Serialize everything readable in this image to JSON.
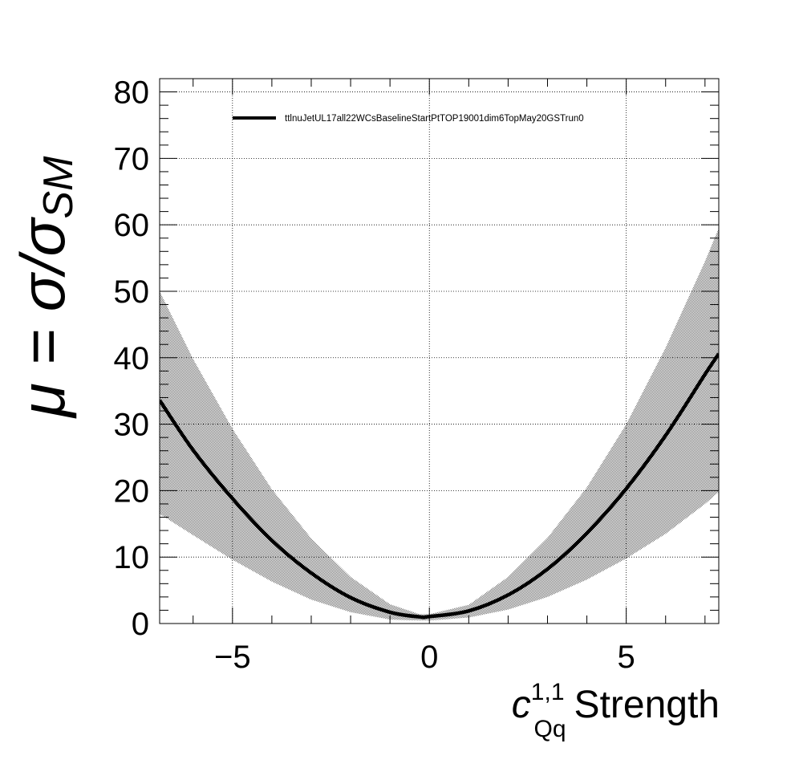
{
  "chart_data": {
    "type": "line",
    "title": "",
    "xlabel": {
      "symbol": "c",
      "superscript": "1,1",
      "subscript": "Qq",
      "text": "Strength"
    },
    "ylabel": {
      "prefix": "μ = σ/σ",
      "subscript": "SM"
    },
    "xlim": [
      -6.85,
      7.35
    ],
    "ylim": [
      0,
      82
    ],
    "xticks": [
      -5,
      0,
      5
    ],
    "xtick_labels": [
      "−5",
      "0",
      "5"
    ],
    "yticks": [
      0,
      10,
      20,
      30,
      40,
      50,
      60,
      70,
      80
    ],
    "ytick_labels": [
      "0",
      "10",
      "20",
      "30",
      "40",
      "50",
      "60",
      "70",
      "80"
    ],
    "grid": true,
    "legend_position": "top",
    "series": [
      {
        "name": "ttlnuJetUL17all22WCsBaselineStartPtTOP19001dim6TopMay20GSTrun0",
        "x": [
          -6.85,
          -6,
          -5,
          -4,
          -3,
          -2,
          -1,
          -0.25,
          0,
          1,
          2,
          3,
          4,
          5,
          6,
          7,
          7.35
        ],
        "y": [
          33.6,
          26.1,
          18.8,
          12.5,
          7.6,
          3.9,
          1.7,
          1.0,
          1.05,
          1.9,
          4.3,
          8.2,
          13.6,
          20.3,
          28.3,
          37.5,
          40.6
        ]
      }
    ],
    "band": {
      "x": [
        -6.85,
        -6,
        -5,
        -4,
        -3,
        -2,
        -1,
        -0.25,
        0,
        1,
        2,
        3,
        4,
        5,
        6,
        7,
        7.35
      ],
      "upper": [
        50.0,
        39.8,
        29.3,
        20.2,
        12.8,
        7.0,
        2.9,
        1.4,
        1.4,
        2.8,
        7.0,
        12.9,
        20.5,
        30.0,
        41.5,
        54.5,
        59.5
      ],
      "lower": [
        16.5,
        13.3,
        9.6,
        6.3,
        3.6,
        1.7,
        0.6,
        0.45,
        0.45,
        0.9,
        2.1,
        4.0,
        6.6,
        9.8,
        13.5,
        18.0,
        19.8
      ]
    },
    "colors": {
      "line": "#000000",
      "band": "#b3b3b3",
      "grid": "#000000"
    }
  }
}
